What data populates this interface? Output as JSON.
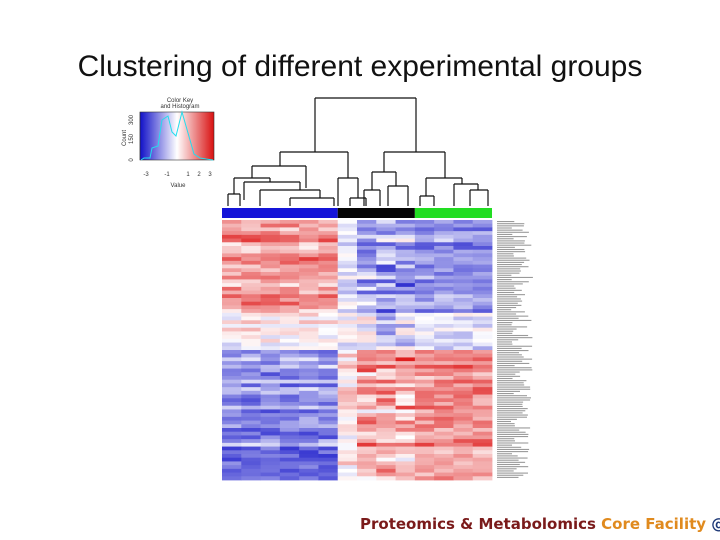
{
  "slide": {
    "title": "Clustering of different experimental groups",
    "footer_part1": "Proteomics & Metabolomics",
    "footer_part2": "Core Facility",
    "footer_part3": "@"
  },
  "color_key": {
    "title_line1": "Color Key",
    "title_line2": "and Histogram",
    "ylabel": "Count",
    "xlabel": "Value",
    "x_ticks": [
      "-3",
      "-1",
      "1",
      "2",
      "3"
    ],
    "y_ticks": [
      "0",
      "150",
      "300"
    ]
  },
  "groups": [
    {
      "color": "#1414d8",
      "columns": 6
    },
    {
      "color": "#050505",
      "columns": 4
    },
    {
      "color": "#22dd22",
      "columns": 4
    }
  ],
  "heatmap": {
    "rows": 70,
    "columns": 14,
    "low_color": "#2222cc",
    "mid_color": "#ffffff",
    "high_color": "#dd1111"
  }
}
